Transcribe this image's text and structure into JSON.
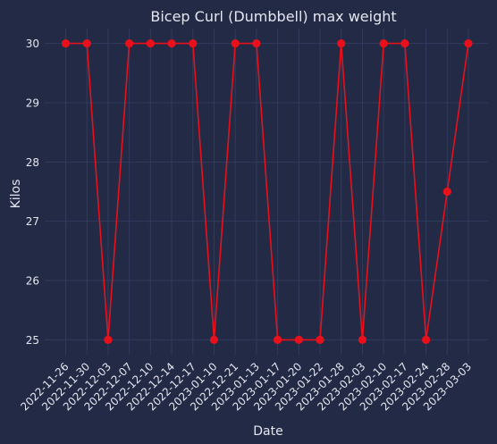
{
  "chart_data": {
    "type": "line",
    "title": "Bicep Curl (Dumbbell) max weight",
    "xlabel": "Date",
    "ylabel": "Kilos",
    "categories": [
      "2022-11-26",
      "2022-11-30",
      "2022-12-03",
      "2022-12-07",
      "2022-12-10",
      "2022-12-14",
      "2022-12-17",
      "2023-01-10",
      "2022-12-21",
      "2023-01-13",
      "2023-01-17",
      "2023-01-20",
      "2023-01-22",
      "2023-01-28",
      "2023-02-03",
      "2023-02-10",
      "2023-02-17",
      "2023-02-24",
      "2023-02-28",
      "2023-03-03"
    ],
    "series": [
      {
        "values": [
          30,
          30,
          25,
          30,
          30,
          30,
          30,
          25,
          30,
          30,
          25,
          25,
          25,
          30,
          25,
          30,
          30,
          25,
          27.5,
          30
        ]
      }
    ],
    "yticks": [
      25,
      26,
      27,
      28,
      29,
      30
    ],
    "ylim": [
      24.75,
      30.25
    ],
    "grid": true,
    "colors": {
      "background": "#232a45",
      "grid": "#313b5e",
      "text": "#e6e6f0",
      "series": "#e8101a"
    }
  }
}
